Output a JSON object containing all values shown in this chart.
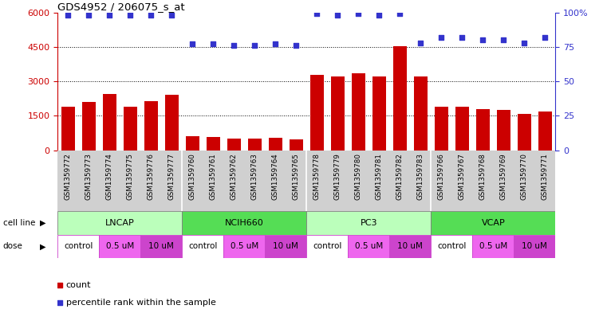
{
  "title": "GDS4952 / 206075_s_at",
  "samples": [
    "GSM1359772",
    "GSM1359773",
    "GSM1359774",
    "GSM1359775",
    "GSM1359776",
    "GSM1359777",
    "GSM1359760",
    "GSM1359761",
    "GSM1359762",
    "GSM1359763",
    "GSM1359764",
    "GSM1359765",
    "GSM1359778",
    "GSM1359779",
    "GSM1359780",
    "GSM1359781",
    "GSM1359782",
    "GSM1359783",
    "GSM1359766",
    "GSM1359767",
    "GSM1359768",
    "GSM1359769",
    "GSM1359770",
    "GSM1359771"
  ],
  "counts": [
    1900,
    2100,
    2450,
    1900,
    2150,
    2400,
    600,
    580,
    500,
    520,
    560,
    480,
    3300,
    3200,
    3350,
    3200,
    4550,
    3200,
    1900,
    1900,
    1800,
    1750,
    1600,
    1700
  ],
  "percentile_ranks": [
    98,
    98,
    98,
    98,
    98,
    98,
    77,
    77,
    76,
    76,
    77,
    76,
    99,
    98,
    99,
    98,
    99,
    78,
    82,
    82,
    80,
    80,
    78,
    82
  ],
  "ylim_left": [
    0,
    6000
  ],
  "ylim_right": [
    0,
    100
  ],
  "yticks_left": [
    0,
    1500,
    3000,
    4500,
    6000
  ],
  "yticks_right": [
    0,
    25,
    50,
    75,
    100
  ],
  "bar_color": "#cc0000",
  "dot_color": "#3333cc",
  "cell_lines": [
    {
      "label": "LNCAP",
      "start": 0,
      "end": 6,
      "color": "#bbffbb"
    },
    {
      "label": "NCIH660",
      "start": 6,
      "end": 12,
      "color": "#55dd55"
    },
    {
      "label": "PC3",
      "start": 12,
      "end": 18,
      "color": "#bbffbb"
    },
    {
      "label": "VCAP",
      "start": 18,
      "end": 24,
      "color": "#55dd55"
    }
  ],
  "doses": [
    {
      "label": "control",
      "start": 0,
      "end": 2,
      "color": "#ffffff"
    },
    {
      "label": "0.5 uM",
      "start": 2,
      "end": 4,
      "color": "#ee66ee"
    },
    {
      "label": "10 uM",
      "start": 4,
      "end": 6,
      "color": "#cc44cc"
    },
    {
      "label": "control",
      "start": 6,
      "end": 8,
      "color": "#ffffff"
    },
    {
      "label": "0.5 uM",
      "start": 8,
      "end": 10,
      "color": "#ee66ee"
    },
    {
      "label": "10 uM",
      "start": 10,
      "end": 12,
      "color": "#cc44cc"
    },
    {
      "label": "control",
      "start": 12,
      "end": 14,
      "color": "#ffffff"
    },
    {
      "label": "0.5 uM",
      "start": 14,
      "end": 16,
      "color": "#ee66ee"
    },
    {
      "label": "10 uM",
      "start": 16,
      "end": 18,
      "color": "#cc44cc"
    },
    {
      "label": "control",
      "start": 18,
      "end": 20,
      "color": "#ffffff"
    },
    {
      "label": "0.5 uM",
      "start": 20,
      "end": 22,
      "color": "#ee66ee"
    },
    {
      "label": "10 uM",
      "start": 22,
      "end": 24,
      "color": "#cc44cc"
    }
  ],
  "legend_items": [
    {
      "label": "count",
      "color": "#cc0000",
      "marker": "s"
    },
    {
      "label": "percentile rank within the sample",
      "color": "#3333cc",
      "marker": "s"
    }
  ],
  "axis_color_left": "#cc0000",
  "axis_color_right": "#3333cc",
  "sample_bg_color": "#d0d0d0",
  "dose_border_color": "#cc44cc"
}
